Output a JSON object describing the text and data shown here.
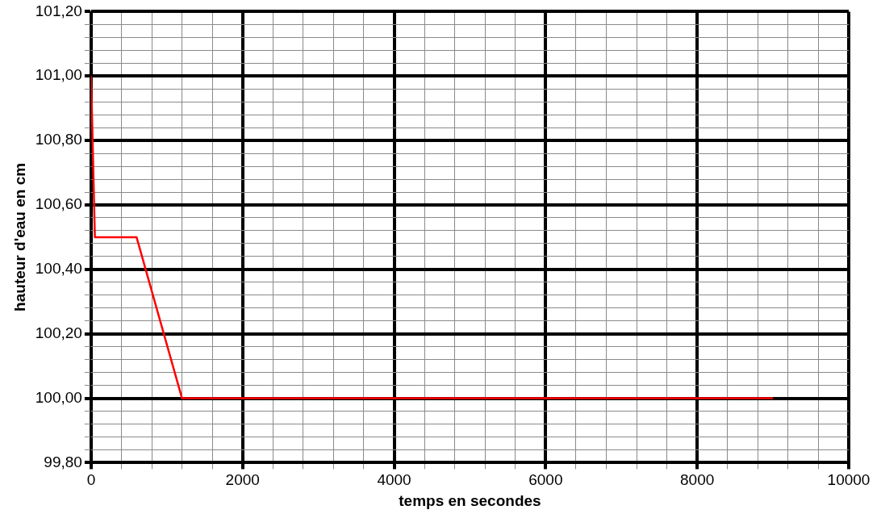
{
  "chart_data": {
    "type": "line",
    "xlabel": "temps en secondes",
    "ylabel": "hauteur d'eau en cm",
    "x": [
      0,
      50,
      600,
      1200,
      9000
    ],
    "series": [
      {
        "color": "#ff0000",
        "values": [
          101.0,
          100.5,
          100.5,
          100.0,
          100.0
        ]
      }
    ],
    "xlim": [
      0,
      10000
    ],
    "xticks": [
      0,
      {
        "value": 400,
        "label": null
      },
      {
        "value": 800,
        "label": null
      },
      {
        "value": 1200,
        "label": null
      },
      {
        "value": 1600,
        "label": null
      },
      2000,
      {
        "value": 2400,
        "label": null
      },
      {
        "value": 2800,
        "label": null
      },
      {
        "value": 3200,
        "label": null
      },
      {
        "value": 3600,
        "label": null
      },
      4000,
      {
        "value": 4400,
        "label": null
      },
      {
        "value": 4800,
        "label": null
      },
      {
        "value": 5200,
        "label": null
      },
      {
        "value": 5600,
        "label": null
      },
      6000,
      {
        "value": 6400,
        "label": null
      },
      {
        "value": 6800,
        "label": null
      },
      {
        "value": 7200,
        "label": null
      },
      {
        "value": 7600,
        "label": null
      },
      8000,
      {
        "value": 8400,
        "label": null
      },
      {
        "value": 8800,
        "label": null
      },
      {
        "value": 9200,
        "label": null
      },
      {
        "value": 9600,
        "label": null
      },
      10000
    ],
    "ylim": [
      99.8,
      101.2
    ],
    "yticks": [
      {
        "value": 99.8,
        "label": "99,80"
      },
      {
        "value": 99.84,
        "label": null
      },
      {
        "value": 99.88,
        "label": null
      },
      {
        "value": 99.92,
        "label": null
      },
      {
        "value": 99.96,
        "label": null
      },
      {
        "value": 100.0,
        "label": "100,00"
      },
      {
        "value": 100.04,
        "label": null
      },
      {
        "value": 100.08,
        "label": null
      },
      {
        "value": 100.12,
        "label": null
      },
      {
        "value": 100.16,
        "label": null
      },
      {
        "value": 100.2,
        "label": "100,20"
      },
      {
        "value": 100.24,
        "label": null
      },
      {
        "value": 100.28,
        "label": null
      },
      {
        "value": 100.32,
        "label": null
      },
      {
        "value": 100.36,
        "label": null
      },
      {
        "value": 100.4,
        "label": "100,40"
      },
      {
        "value": 100.44,
        "label": null
      },
      {
        "value": 100.48,
        "label": null
      },
      {
        "value": 100.52,
        "label": null
      },
      {
        "value": 100.56,
        "label": null
      },
      {
        "value": 100.6,
        "label": "100,60"
      },
      {
        "value": 100.64,
        "label": null
      },
      {
        "value": 100.68,
        "label": null
      },
      {
        "value": 100.72,
        "label": null
      },
      {
        "value": 100.76,
        "label": null
      },
      {
        "value": 100.8,
        "label": "100,80"
      },
      {
        "value": 100.84,
        "label": null
      },
      {
        "value": 100.88,
        "label": null
      },
      {
        "value": 100.92,
        "label": null
      },
      {
        "value": 100.96,
        "label": null
      },
      {
        "value": 101.0,
        "label": "101,00"
      },
      {
        "value": 101.04,
        "label": null
      },
      {
        "value": 101.08,
        "label": null
      },
      {
        "value": 101.12,
        "label": null
      },
      {
        "value": 101.16,
        "label": null
      },
      {
        "value": 101.2,
        "label": "101,20"
      }
    ],
    "grid": true,
    "legend": false,
    "marker": "none",
    "line_style": "solid"
  }
}
